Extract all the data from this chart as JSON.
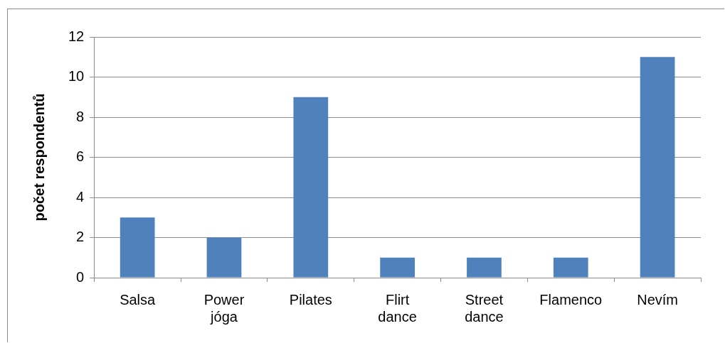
{
  "chart_data": {
    "type": "bar",
    "ylabel": "počet respondentů",
    "categories": [
      "Salsa",
      "Power jóga",
      "Pilates",
      "Flirt dance",
      "Street dance",
      "Flamenco",
      "Nevím"
    ],
    "values": [
      3,
      2,
      9,
      1,
      1,
      1,
      11
    ],
    "color": "#4f81bd",
    "ylim": [
      0,
      12
    ],
    "yticks": [
      0,
      2,
      4,
      6,
      8,
      10,
      12
    ],
    "grid": "y",
    "legend": false
  }
}
